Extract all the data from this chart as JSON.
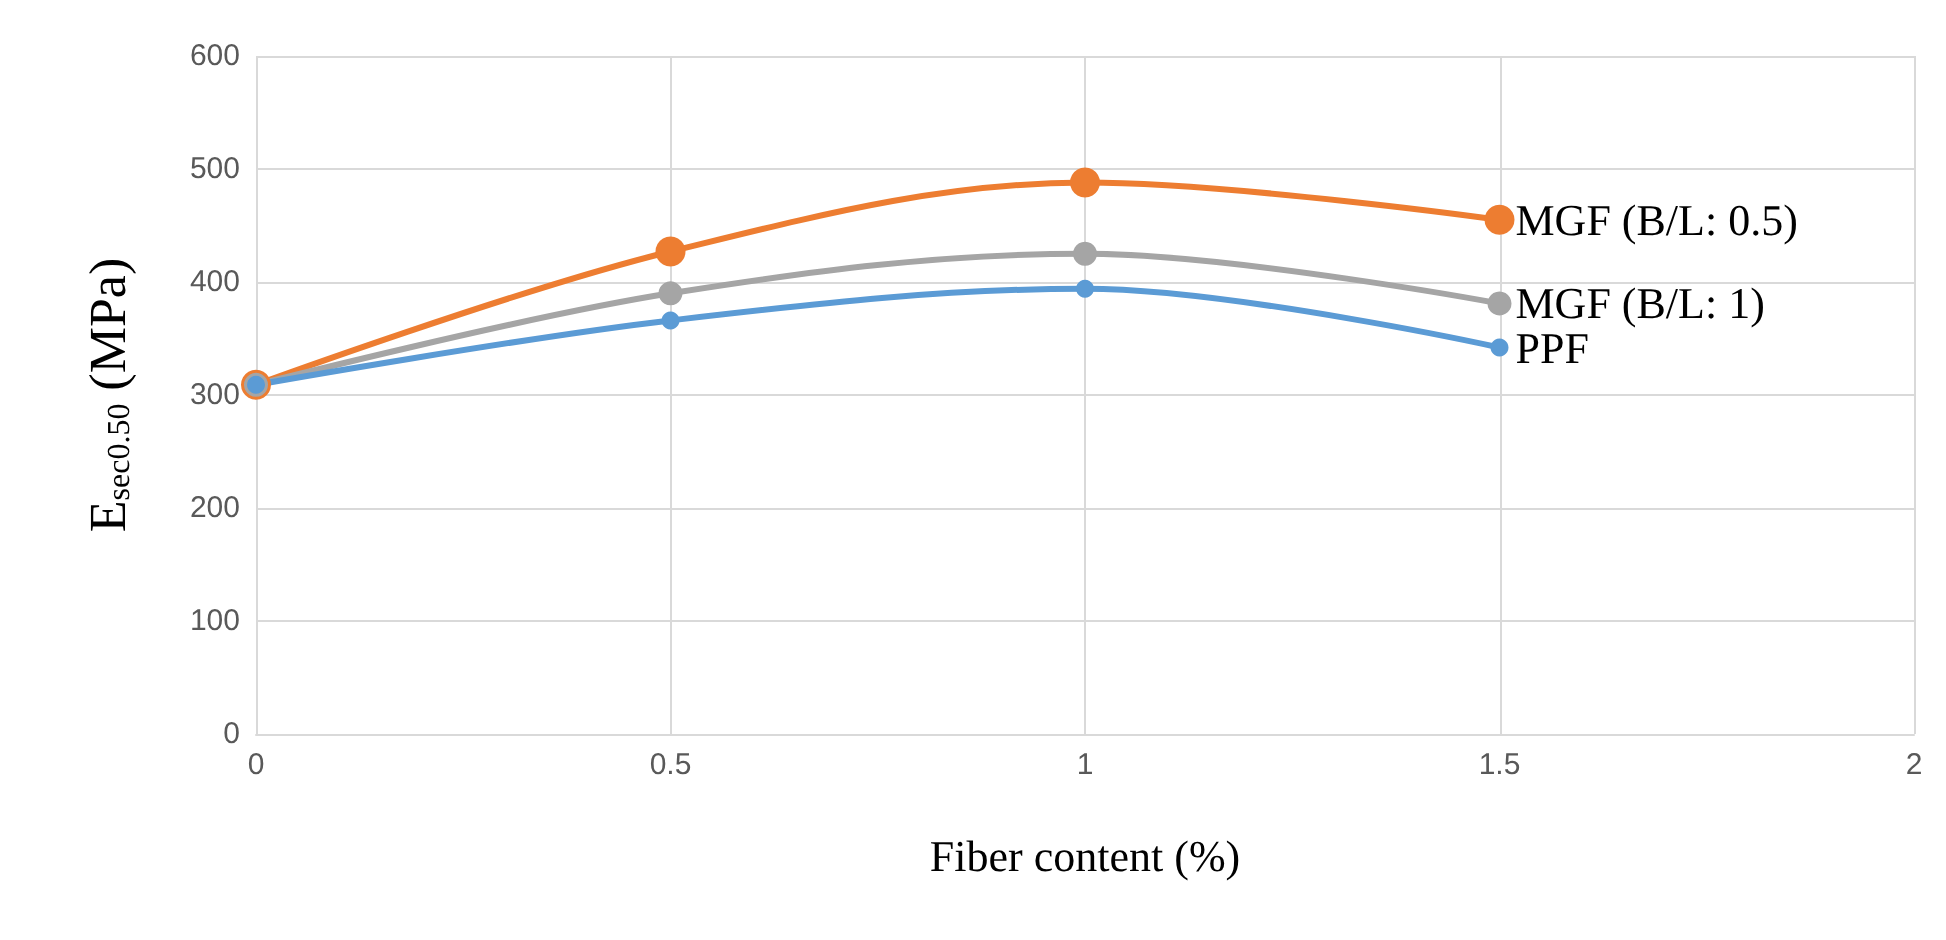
{
  "chart_data": {
    "type": "line",
    "xlabel": "Fiber content (%)",
    "ylabel": "E$_{sec0.50}$ (MPa)",
    "x": [
      0,
      0.5,
      1,
      1.5
    ],
    "series": [
      {
        "name": "MGF (B/L: 0.5)",
        "color": "#ed7d31",
        "values": [
          309,
          427,
          488,
          455
        ]
      },
      {
        "name": "MGF (B/L: 1)",
        "color": "#a5a5a5",
        "values": [
          309,
          390,
          425,
          381
        ]
      },
      {
        "name": "PPF",
        "color": "#5b9bd5",
        "values": [
          309,
          366,
          394,
          342
        ]
      }
    ],
    "xlim": [
      0,
      2
    ],
    "xticks": [
      0,
      0.5,
      1,
      1.5,
      2
    ],
    "ylim": [
      0,
      600
    ],
    "yticks": [
      0,
      100,
      200,
      300,
      400,
      500,
      600
    ],
    "grid": true,
    "marker": "circle",
    "line_style": "solid",
    "legend": false
  }
}
